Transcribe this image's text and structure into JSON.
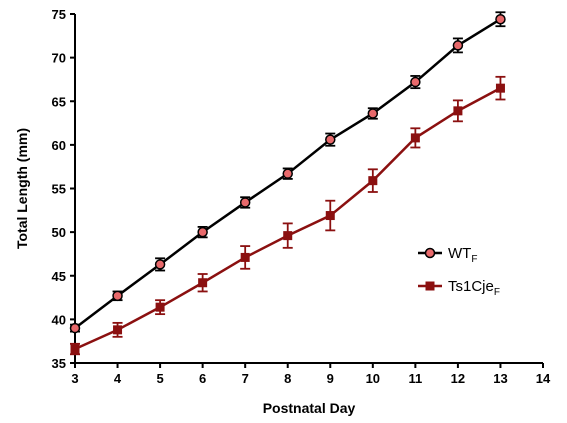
{
  "chart_data": {
    "type": "line",
    "xlabel": "Postnatal Day",
    "ylabel": "Total Length (mm)",
    "xlim": [
      3,
      14
    ],
    "ylim": [
      35,
      75
    ],
    "x_ticks": [
      "3",
      "4",
      "5",
      "6",
      "7",
      "8",
      "9",
      "10",
      "11",
      "12",
      "13",
      "14"
    ],
    "y_ticks": [
      "35",
      "40",
      "45",
      "50",
      "55",
      "60",
      "65",
      "70",
      "75"
    ],
    "legend_position": "right",
    "series": [
      {
        "name": "WT",
        "name_subscript": "F",
        "marker": "circle",
        "line_color": "#000000",
        "marker_fill": "#e8696b",
        "x": [
          3,
          4,
          5,
          6,
          7,
          8,
          9,
          10,
          11,
          12,
          13
        ],
        "y": [
          39.0,
          42.7,
          46.3,
          50.0,
          53.4,
          56.7,
          60.6,
          63.6,
          67.2,
          71.4,
          74.4
        ],
        "error": [
          0.4,
          0.5,
          0.7,
          0.6,
          0.6,
          0.6,
          0.7,
          0.6,
          0.7,
          0.8,
          0.8
        ]
      },
      {
        "name": "Ts1Cje",
        "name_subscript": "F",
        "marker": "square",
        "line_color": "#8b1010",
        "marker_fill": "#8b1010",
        "x": [
          3,
          4,
          5,
          6,
          7,
          8,
          9,
          10,
          11,
          12,
          13
        ],
        "y": [
          36.6,
          38.8,
          41.4,
          44.2,
          47.1,
          49.6,
          51.9,
          55.9,
          60.8,
          63.9,
          66.5
        ],
        "error": [
          0.6,
          0.8,
          0.8,
          1.0,
          1.3,
          1.4,
          1.7,
          1.3,
          1.1,
          1.2,
          1.3
        ]
      }
    ]
  }
}
